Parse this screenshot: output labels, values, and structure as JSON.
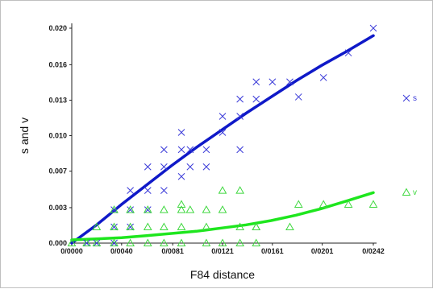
{
  "chart_data": {
    "type": "scatter",
    "xlabel": "F84 distance",
    "ylabel": "s and v",
    "xlim": [
      0,
      0.0242
    ],
    "ylim": [
      0,
      0.02
    ],
    "x_ticks": [
      "0/0000",
      "0/0040",
      "0/0081",
      "0/0121",
      "0/0161",
      "0/0201",
      "0/0242"
    ],
    "x_tick_values": [
      0,
      0.004,
      0.0081,
      0.0121,
      0.0161,
      0.0201,
      0.0242
    ],
    "y_ticks": [
      "0.000",
      "0.003",
      "0.007",
      "0.010",
      "0.013",
      "0.016",
      "0.020"
    ],
    "y_tick_values": [
      0,
      0.0033,
      0.0067,
      0.01,
      0.0133,
      0.0166,
      0.02
    ],
    "grid": false,
    "legend_position": "right",
    "series": [
      {
        "name": "s",
        "marker": "x",
        "color": "#3a3ad8",
        "points": [
          [
            0.0012,
            0.0
          ],
          [
            0.002,
            0.0
          ],
          [
            0.0034,
            0.0
          ],
          [
            0.0034,
            0.0015
          ],
          [
            0.0034,
            0.0031
          ],
          [
            0.0047,
            0.0015
          ],
          [
            0.0047,
            0.0031
          ],
          [
            0.0047,
            0.0049
          ],
          [
            0.0061,
            0.0031
          ],
          [
            0.0061,
            0.0049
          ],
          [
            0.0061,
            0.0071
          ],
          [
            0.0074,
            0.0049
          ],
          [
            0.0074,
            0.0071
          ],
          [
            0.0074,
            0.0087
          ],
          [
            0.0088,
            0.0062
          ],
          [
            0.0088,
            0.0087
          ],
          [
            0.0088,
            0.0103
          ],
          [
            0.0095,
            0.0071
          ],
          [
            0.0095,
            0.0087
          ],
          [
            0.0108,
            0.0071
          ],
          [
            0.0108,
            0.0087
          ],
          [
            0.0121,
            0.0103
          ],
          [
            0.0121,
            0.0118
          ],
          [
            0.0135,
            0.0087
          ],
          [
            0.0135,
            0.0118
          ],
          [
            0.0135,
            0.0134
          ],
          [
            0.0148,
            0.0134
          ],
          [
            0.0148,
            0.015
          ],
          [
            0.0161,
            0.015
          ],
          [
            0.0175,
            0.015
          ],
          [
            0.0182,
            0.0136
          ],
          [
            0.0202,
            0.0154
          ],
          [
            0.0222,
            0.0177
          ],
          [
            0.0242,
            0.02
          ]
        ],
        "fit": [
          [
            0.0,
            0.0
          ],
          [
            0.002,
            0.0017
          ],
          [
            0.004,
            0.0036
          ],
          [
            0.006,
            0.0054
          ],
          [
            0.008,
            0.0072
          ],
          [
            0.01,
            0.0089
          ],
          [
            0.012,
            0.0105
          ],
          [
            0.014,
            0.0121
          ],
          [
            0.016,
            0.0136
          ],
          [
            0.018,
            0.0151
          ],
          [
            0.02,
            0.0165
          ],
          [
            0.022,
            0.0178
          ],
          [
            0.0242,
            0.0193
          ]
        ],
        "fit_color": "#0f19c8"
      },
      {
        "name": "v",
        "marker": "triangle",
        "color": "#3fd83f",
        "points": [
          [
            0.0,
            0.0
          ],
          [
            0.0012,
            0.0
          ],
          [
            0.002,
            0.0
          ],
          [
            0.0034,
            0.0
          ],
          [
            0.0047,
            0.0
          ],
          [
            0.002,
            0.0015
          ],
          [
            0.0034,
            0.0015
          ],
          [
            0.0047,
            0.0015
          ],
          [
            0.0061,
            0.0015
          ],
          [
            0.0074,
            0.0015
          ],
          [
            0.0088,
            0.0015
          ],
          [
            0.0108,
            0.0015
          ],
          [
            0.0135,
            0.0015
          ],
          [
            0.0148,
            0.0015
          ],
          [
            0.0175,
            0.0015
          ],
          [
            0.0034,
            0.0031
          ],
          [
            0.0047,
            0.0031
          ],
          [
            0.0061,
            0.0031
          ],
          [
            0.0074,
            0.0031
          ],
          [
            0.0088,
            0.0031
          ],
          [
            0.0095,
            0.0031
          ],
          [
            0.0108,
            0.0031
          ],
          [
            0.0121,
            0.0031
          ],
          [
            0.0088,
            0.0036
          ],
          [
            0.0121,
            0.0049
          ],
          [
            0.0135,
            0.0049
          ],
          [
            0.0148,
            0.0015
          ],
          [
            0.0182,
            0.0036
          ],
          [
            0.0202,
            0.0036
          ],
          [
            0.0222,
            0.0036
          ],
          [
            0.0242,
            0.0036
          ],
          [
            0.0061,
            0.0
          ],
          [
            0.0074,
            0.0
          ],
          [
            0.0088,
            0.0
          ],
          [
            0.0108,
            0.0
          ],
          [
            0.0121,
            0.0
          ],
          [
            0.0135,
            0.0
          ],
          [
            0.0148,
            0.0
          ]
        ],
        "fit": [
          [
            0.0,
            0.0003
          ],
          [
            0.002,
            0.0004
          ],
          [
            0.004,
            0.0005
          ],
          [
            0.006,
            0.0007
          ],
          [
            0.008,
            0.0009
          ],
          [
            0.01,
            0.0011
          ],
          [
            0.012,
            0.0014
          ],
          [
            0.014,
            0.0017
          ],
          [
            0.016,
            0.0021
          ],
          [
            0.018,
            0.0026
          ],
          [
            0.02,
            0.0032
          ],
          [
            0.022,
            0.0039
          ],
          [
            0.0242,
            0.0047
          ]
        ],
        "fit_color": "#1ee61e"
      }
    ]
  }
}
